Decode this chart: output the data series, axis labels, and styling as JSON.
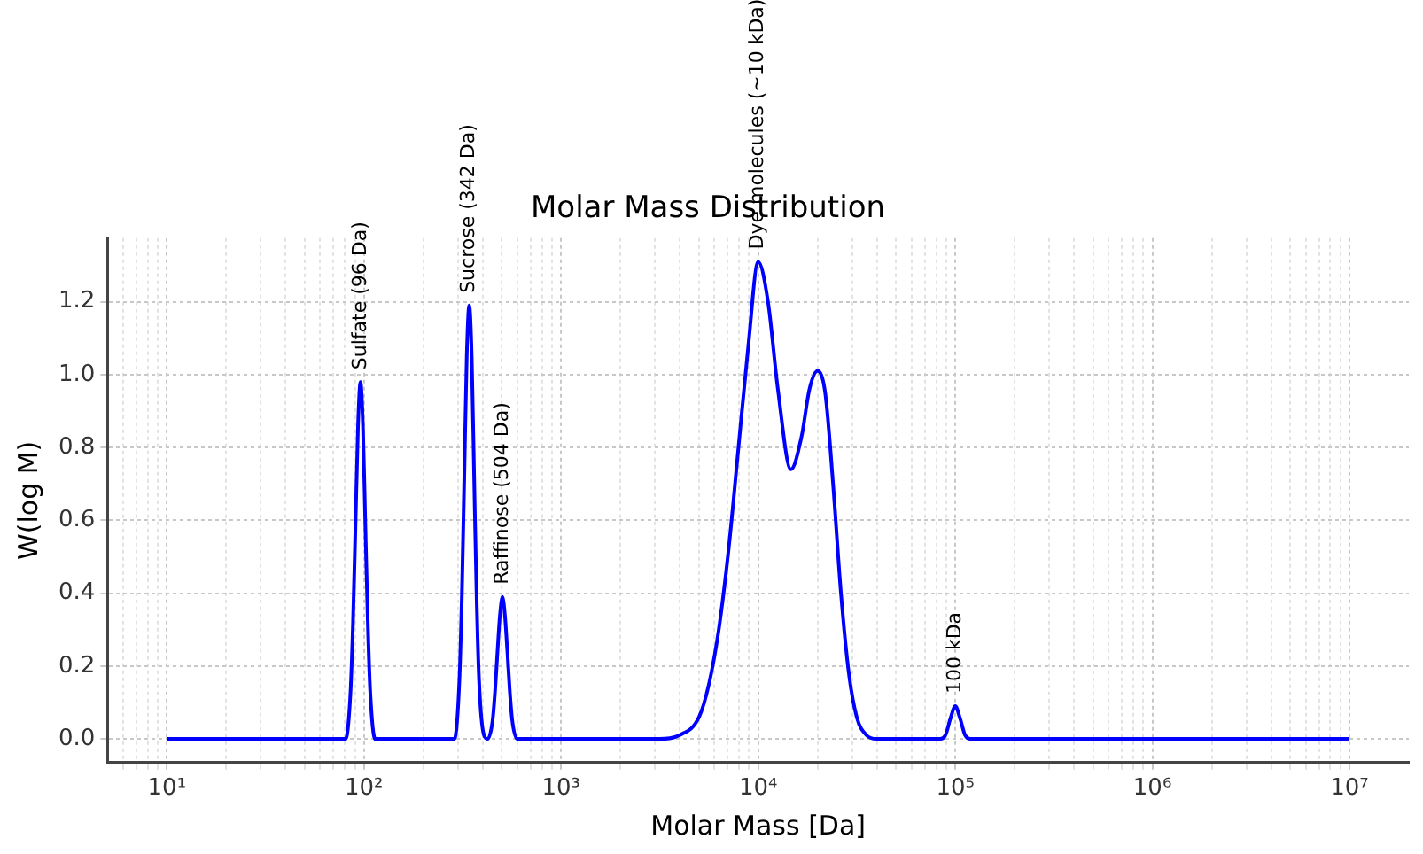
{
  "chart_data": {
    "type": "line",
    "title": "Molar Mass Distribution",
    "xlabel": "Molar Mass [Da]",
    "ylabel": "W(log M)",
    "log": "x",
    "grid": true,
    "marker": "none",
    "line_style": "solid",
    "legend": false,
    "xlim": [
      5,
      20000000
    ],
    "ylim": [
      -0.065,
      1.375
    ],
    "xticks": [
      {
        "value": 6,
        "label": null
      },
      {
        "value": 7,
        "label": null
      },
      {
        "value": 8,
        "label": null
      },
      {
        "value": 9,
        "label": null
      },
      {
        "value": 10,
        "label": "10¹"
      },
      {
        "value": 20,
        "label": null
      },
      {
        "value": 30,
        "label": null
      },
      {
        "value": 40,
        "label": null
      },
      {
        "value": 50,
        "label": null
      },
      {
        "value": 60,
        "label": null
      },
      {
        "value": 70,
        "label": null
      },
      {
        "value": 80,
        "label": null
      },
      {
        "value": 90,
        "label": null
      },
      {
        "value": 100,
        "label": "10²"
      },
      {
        "value": 200,
        "label": null
      },
      {
        "value": 300,
        "label": null
      },
      {
        "value": 400,
        "label": null
      },
      {
        "value": 500,
        "label": null
      },
      {
        "value": 600,
        "label": null
      },
      {
        "value": 700,
        "label": null
      },
      {
        "value": 800,
        "label": null
      },
      {
        "value": 900,
        "label": null
      },
      {
        "value": 1000,
        "label": "10³"
      },
      {
        "value": 2000,
        "label": null
      },
      {
        "value": 3000,
        "label": null
      },
      {
        "value": 4000,
        "label": null
      },
      {
        "value": 5000,
        "label": null
      },
      {
        "value": 6000,
        "label": null
      },
      {
        "value": 7000,
        "label": null
      },
      {
        "value": 8000,
        "label": null
      },
      {
        "value": 9000,
        "label": null
      },
      {
        "value": 10000,
        "label": "10⁴"
      },
      {
        "value": 20000,
        "label": null
      },
      {
        "value": 30000,
        "label": null
      },
      {
        "value": 40000,
        "label": null
      },
      {
        "value": 50000,
        "label": null
      },
      {
        "value": 60000,
        "label": null
      },
      {
        "value": 70000,
        "label": null
      },
      {
        "value": 80000,
        "label": null
      },
      {
        "value": 90000,
        "label": null
      },
      {
        "value": 100000,
        "label": "10⁵"
      },
      {
        "value": 200000,
        "label": null
      },
      {
        "value": 300000,
        "label": null
      },
      {
        "value": 400000,
        "label": null
      },
      {
        "value": 500000,
        "label": null
      },
      {
        "value": 600000,
        "label": null
      },
      {
        "value": 700000,
        "label": null
      },
      {
        "value": 800000,
        "label": null
      },
      {
        "value": 900000,
        "label": null
      },
      {
        "value": 1000000,
        "label": "10⁶"
      },
      {
        "value": 2000000,
        "label": null
      },
      {
        "value": 3000000,
        "label": null
      },
      {
        "value": 4000000,
        "label": null
      },
      {
        "value": 5000000,
        "label": null
      },
      {
        "value": 6000000,
        "label": null
      },
      {
        "value": 7000000,
        "label": null
      },
      {
        "value": 8000000,
        "label": null
      },
      {
        "value": 9000000,
        "label": null
      },
      {
        "value": 10000000,
        "label": "10⁷"
      }
    ],
    "yticks": [
      {
        "value": 0,
        "label": "0.0"
      },
      {
        "value": 0.2,
        "label": "0.2"
      },
      {
        "value": 0.4,
        "label": "0.4"
      },
      {
        "value": 0.6,
        "label": "0.6"
      },
      {
        "value": 0.8,
        "label": "0.8"
      },
      {
        "value": 1,
        "label": "1.0"
      },
      {
        "value": 1.2,
        "label": "1.2"
      }
    ],
    "series": [
      {
        "color": "#0000ff",
        "x": [
          10,
          80.7,
          85.5,
          88,
          90.6,
          93.3,
          96,
          98.8,
          101.6,
          104.6,
          107.6,
          114,
          287.7,
          304.8,
          313.7,
          322.8,
          332.2,
          342,
          352.1,
          362.2,
          372.8,
          383.7,
          406.4,
          424.2,
          449.2,
          462.3,
          475.8,
          489.7,
          504,
          518.7,
          533.9,
          549.5,
          565.5,
          599.1,
          3162,
          3981,
          5012,
          5623,
          6310,
          7079,
          7943,
          8913,
          10000,
          11220,
          12589,
          14660,
          16596,
          18197,
          20000,
          21878,
          23988,
          26303,
          28840,
          31623,
          35481,
          39811,
          84140,
          89125,
          94406,
          100000,
          105925,
          112202,
          118850,
          10000000
        ],
        "values": [
          0,
          0,
          0.13,
          0.32,
          0.59,
          0.86,
          0.98,
          0.86,
          0.59,
          0.32,
          0.13,
          0,
          0,
          0.16,
          0.39,
          0.72,
          1.05,
          1.19,
          1.05,
          0.72,
          0.39,
          0.16,
          0.01,
          0,
          0.05,
          0.13,
          0.24,
          0.34,
          0.39,
          0.34,
          0.24,
          0.13,
          0.05,
          0,
          0,
          0.01,
          0.06,
          0.15,
          0.3,
          0.52,
          0.8,
          1.08,
          1.31,
          1.2,
          0.96,
          0.74,
          0.83,
          0.96,
          1.01,
          0.95,
          0.7,
          0.4,
          0.18,
          0.06,
          0.01,
          0,
          0,
          0.01,
          0.055,
          0.09,
          0.055,
          0.01,
          0,
          0
        ]
      }
    ],
    "annotations": [
      {
        "text": "Sulfate (96 Da)",
        "x": 96,
        "y": 0.98
      },
      {
        "text": "Sucrose (342 Da)",
        "x": 342,
        "y": 1.19
      },
      {
        "text": "Raffinose (504 Da)",
        "x": 504,
        "y": 0.39
      },
      {
        "text": "Dye molecules (~10 kDa)",
        "x": 10000,
        "y": 1.31
      },
      {
        "text": "100 kDa",
        "x": 100000,
        "y": 0.09
      }
    ]
  }
}
